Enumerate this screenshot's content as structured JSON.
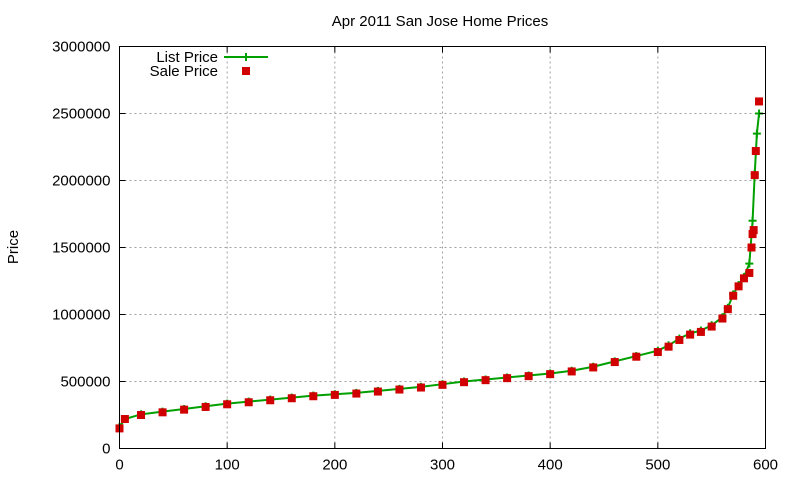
{
  "chart_data": {
    "type": "scatter",
    "title": "Apr 2011 San Jose Home Prices",
    "xlabel": "",
    "ylabel": "Price",
    "xlim": [
      0,
      600
    ],
    "ylim": [
      0,
      3000000
    ],
    "x_ticks": [
      "0",
      "100",
      "200",
      "300",
      "400",
      "500",
      "600"
    ],
    "y_ticks": [
      "0",
      "500000",
      "1000000",
      "1500000",
      "2000000",
      "2500000",
      "3000000"
    ],
    "grid": true,
    "legend_position": "top-left",
    "series": [
      {
        "name": "List Price",
        "style": "line+plus",
        "color": "#00a000",
        "x": [
          0,
          5,
          20,
          40,
          60,
          80,
          100,
          120,
          140,
          160,
          180,
          200,
          220,
          240,
          260,
          280,
          300,
          320,
          340,
          360,
          380,
          400,
          420,
          440,
          460,
          480,
          500,
          510,
          520,
          530,
          540,
          550,
          560,
          565,
          570,
          575,
          580,
          585,
          588,
          590,
          592,
          594
        ],
        "y": [
          160000,
          220000,
          255000,
          275000,
          295000,
          315000,
          335000,
          350000,
          365000,
          380000,
          395000,
          405000,
          415000,
          430000,
          445000,
          460000,
          480000,
          500000,
          515000,
          530000,
          545000,
          560000,
          580000,
          610000,
          650000,
          690000,
          730000,
          770000,
          820000,
          860000,
          880000,
          920000,
          980000,
          1050000,
          1150000,
          1220000,
          1280000,
          1380000,
          1700000,
          2050000,
          2350000,
          2500000
        ]
      },
      {
        "name": "Sale Price",
        "style": "square",
        "color": "#d00000",
        "x": [
          0,
          5,
          20,
          40,
          60,
          80,
          100,
          120,
          140,
          160,
          180,
          200,
          220,
          240,
          260,
          280,
          300,
          320,
          340,
          360,
          380,
          400,
          420,
          440,
          460,
          480,
          500,
          510,
          520,
          530,
          540,
          550,
          560,
          565,
          570,
          575,
          580,
          585,
          587,
          588,
          589,
          590,
          591,
          594
        ],
        "y": [
          150000,
          220000,
          250000,
          270000,
          290000,
          310000,
          330000,
          345000,
          360000,
          375000,
          390000,
          400000,
          410000,
          425000,
          440000,
          455000,
          475000,
          495000,
          510000,
          525000,
          540000,
          555000,
          575000,
          605000,
          645000,
          685000,
          720000,
          760000,
          810000,
          850000,
          870000,
          910000,
          970000,
          1040000,
          1140000,
          1210000,
          1270000,
          1310000,
          1500000,
          1600000,
          1630000,
          2040000,
          2220000,
          2590000
        ]
      }
    ]
  }
}
